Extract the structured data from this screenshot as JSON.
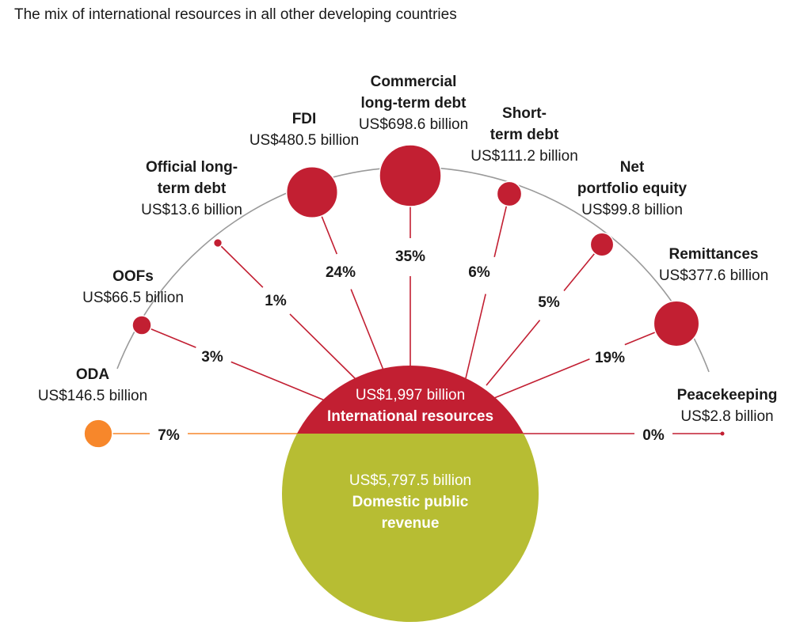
{
  "title": "The mix of international resources in all other developing countries",
  "colors": {
    "international": "#c21f32",
    "oda": "#f7872b",
    "domestic": "#b7bd33",
    "arc": "#9a9a9a"
  },
  "center": {
    "international_amount": "US$1,997 billion",
    "international_label": "International resources",
    "domestic_amount": "US$5,797.5 billion",
    "domestic_label_line1": "Domestic public",
    "domestic_label_line2": "revenue"
  },
  "chart_data": {
    "type": "bubble-hub",
    "total_international": 1997,
    "total_domestic": 5797.5,
    "unit": "US$ billion",
    "items": [
      {
        "name_line1": "ODA",
        "name_line2": "",
        "amount_text": "US$146.5 billion",
        "value": 146.5,
        "share": "7%",
        "color": "oda"
      },
      {
        "name_line1": "OOFs",
        "name_line2": "",
        "amount_text": "US$66.5 billion",
        "value": 66.5,
        "share": "3%",
        "color": "international"
      },
      {
        "name_line1": "Official long-",
        "name_line2": "term debt",
        "amount_text": "US$13.6 billion",
        "value": 13.6,
        "share": "1%",
        "color": "international"
      },
      {
        "name_line1": "FDI",
        "name_line2": "",
        "amount_text": "US$480.5 billion",
        "value": 480.5,
        "share": "24%",
        "color": "international"
      },
      {
        "name_line1": "Commercial",
        "name_line2": "long-term debt",
        "amount_text": "US$698.6 billion",
        "value": 698.6,
        "share": "35%",
        "color": "international"
      },
      {
        "name_line1": "Short-",
        "name_line2": "term debt",
        "amount_text": "US$111.2 billion",
        "value": 111.2,
        "share": "6%",
        "color": "international"
      },
      {
        "name_line1": "Net",
        "name_line2": "portfolio equity",
        "amount_text": "US$99.8 billion",
        "value": 99.8,
        "share": "5%",
        "color": "international"
      },
      {
        "name_line1": "Remittances",
        "name_line2": "",
        "amount_text": "US$377.6 billion",
        "value": 377.6,
        "share": "19%",
        "color": "international"
      },
      {
        "name_line1": "Peacekeeping",
        "name_line2": "",
        "amount_text": "US$2.8 billion",
        "value": 2.8,
        "share": "0%",
        "color": "international"
      }
    ]
  }
}
